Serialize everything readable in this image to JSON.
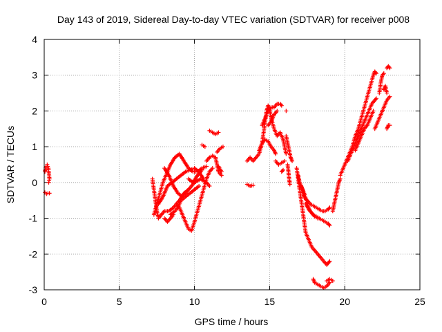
{
  "chart_data": {
    "type": "scatter",
    "title": "Day 143 of 2019, Sidereal Day-to-day VTEC variation (SDTVAR) for receiver p008",
    "xlabel": "GPS time / hours",
    "ylabel": "SDTVAR / TECUs",
    "xlim": [
      0,
      25
    ],
    "ylim": [
      -3,
      4
    ],
    "xticks": [
      0,
      5,
      10,
      15,
      20,
      25
    ],
    "yticks": [
      -3,
      -2,
      -1,
      0,
      1,
      2,
      3,
      4
    ],
    "grid": true,
    "marker": "+",
    "colors": {
      "points": "#ff0000",
      "grid": "#a0a0a0",
      "axes": "#000000"
    },
    "series": [
      {
        "name": "p008",
        "segments": [
          [
            [
              0.05,
              0.3
            ],
            [
              0.12,
              0.45
            ],
            [
              0.2,
              0.5
            ],
            [
              0.28,
              0.4
            ],
            [
              0.35,
              0.1
            ],
            [
              0.3,
              0.0
            ]
          ],
          [
            [
              0.05,
              -0.28
            ],
            [
              0.15,
              -0.32
            ],
            [
              0.25,
              -0.3
            ],
            [
              0.35,
              -0.3
            ]
          ],
          [
            [
              7.2,
              0.1
            ],
            [
              7.3,
              -0.2
            ],
            [
              7.4,
              -0.5
            ],
            [
              7.5,
              -0.8
            ],
            [
              7.6,
              -1.0
            ],
            [
              7.8,
              -0.9
            ],
            [
              8.0,
              -0.8
            ],
            [
              8.3,
              -0.8
            ],
            [
              8.6,
              -0.7
            ],
            [
              9.0,
              -0.5
            ],
            [
              9.3,
              -0.3
            ],
            [
              9.6,
              -0.2
            ]
          ],
          [
            [
              7.3,
              -0.9
            ],
            [
              7.5,
              -0.6
            ],
            [
              7.7,
              -0.3
            ],
            [
              7.9,
              0.0
            ],
            [
              8.1,
              0.2
            ],
            [
              8.4,
              0.5
            ],
            [
              8.7,
              0.7
            ],
            [
              9.0,
              0.8
            ],
            [
              9.3,
              0.6
            ],
            [
              9.6,
              0.4
            ],
            [
              9.9,
              0.3
            ],
            [
              10.2,
              0.3
            ],
            [
              10.5,
              0.4
            ],
            [
              10.8,
              0.45
            ]
          ],
          [
            [
              7.6,
              -0.6
            ],
            [
              7.9,
              -0.4
            ],
            [
              8.2,
              -0.1
            ],
            [
              8.5,
              0.0
            ],
            [
              8.8,
              0.1
            ],
            [
              9.1,
              0.2
            ],
            [
              9.4,
              0.3
            ],
            [
              9.7,
              0.35
            ],
            [
              10.0,
              0.4
            ],
            [
              10.3,
              0.3
            ],
            [
              10.6,
              0.1
            ]
          ],
          [
            [
              8.0,
              0.4
            ],
            [
              8.3,
              0.2
            ],
            [
              8.6,
              -0.1
            ],
            [
              8.9,
              -0.3
            ],
            [
              9.2,
              -0.4
            ],
            [
              9.6,
              -0.2
            ],
            [
              10.0,
              0.0
            ],
            [
              10.4,
              0.1
            ],
            [
              10.8,
              0.0
            ],
            [
              11.0,
              -0.1
            ]
          ],
          [
            [
              8.4,
              -0.9
            ],
            [
              8.7,
              -0.8
            ],
            [
              8.9,
              -0.7
            ],
            [
              9.1,
              -0.5
            ],
            [
              9.4,
              -0.4
            ],
            [
              9.7,
              -0.3
            ],
            [
              10.0,
              -0.2
            ],
            [
              10.3,
              -0.1
            ]
          ],
          [
            [
              8.8,
              -0.6
            ],
            [
              9.0,
              -0.7
            ],
            [
              9.2,
              -0.9
            ],
            [
              9.4,
              -1.1
            ],
            [
              9.6,
              -1.3
            ],
            [
              9.8,
              -1.35
            ],
            [
              10.0,
              -1.1
            ],
            [
              10.2,
              -0.8
            ],
            [
              10.4,
              -0.5
            ],
            [
              10.6,
              -0.2
            ],
            [
              10.8,
              0.1
            ],
            [
              11.0,
              0.3
            ],
            [
              11.2,
              0.4
            ]
          ],
          [
            [
              8.0,
              -1.0
            ],
            [
              8.2,
              -1.1
            ],
            [
              8.4,
              -1.0
            ],
            [
              8.6,
              -0.9
            ]
          ],
          [
            [
              9.6,
              0.1
            ],
            [
              9.9,
              0.0
            ],
            [
              10.2,
              0.2
            ],
            [
              10.5,
              0.35
            ]
          ],
          [
            [
              10.5,
              1.05
            ],
            [
              10.7,
              1.0
            ]
          ],
          [
            [
              10.8,
              0.6
            ],
            [
              11.0,
              0.7
            ],
            [
              11.2,
              0.75
            ],
            [
              11.4,
              0.7
            ],
            [
              11.6,
              0.3
            ],
            [
              11.8,
              0.2
            ]
          ],
          [
            [
              11.0,
              1.45
            ],
            [
              11.2,
              1.4
            ],
            [
              11.4,
              1.35
            ],
            [
              11.6,
              1.4
            ]
          ],
          [
            [
              11.5,
              0.85
            ],
            [
              11.7,
              0.95
            ],
            [
              11.9,
              1.0
            ]
          ],
          [
            [
              11.6,
              0.45
            ],
            [
              11.8,
              0.3
            ]
          ],
          [
            [
              13.5,
              0.6
            ],
            [
              13.7,
              0.7
            ],
            [
              13.9,
              0.6
            ],
            [
              14.1,
              0.7
            ],
            [
              14.3,
              0.8
            ],
            [
              14.5,
              1.1
            ],
            [
              14.6,
              1.4
            ],
            [
              14.7,
              1.7
            ],
            [
              14.8,
              2.0
            ],
            [
              14.9,
              2.15
            ],
            [
              15.0,
              2.05
            ],
            [
              15.1,
              1.8
            ],
            [
              15.3,
              1.5
            ],
            [
              15.5,
              1.3
            ],
            [
              15.7,
              1.4
            ],
            [
              15.9,
              1.2
            ],
            [
              16.0,
              1.0
            ],
            [
              16.1,
              0.8
            ]
          ],
          [
            [
              13.5,
              -0.05
            ],
            [
              13.7,
              -0.1
            ],
            [
              13.9,
              -0.08
            ]
          ],
          [
            [
              14.3,
              0.9
            ],
            [
              14.5,
              1.1
            ],
            [
              14.7,
              1.2
            ],
            [
              14.9,
              1.15
            ],
            [
              15.1,
              1.0
            ],
            [
              15.3,
              0.9
            ],
            [
              15.4,
              0.8
            ]
          ],
          [
            [
              14.5,
              1.6
            ],
            [
              14.7,
              1.8
            ],
            [
              14.9,
              2.0
            ],
            [
              15.1,
              2.1
            ],
            [
              15.3,
              2.1
            ],
            [
              15.5,
              2.2
            ],
            [
              15.7,
              2.2
            ],
            [
              15.8,
              2.15
            ]
          ],
          [
            [
              14.9,
              1.6
            ],
            [
              15.1,
              1.7
            ],
            [
              15.3,
              1.9
            ],
            [
              15.5,
              2.0
            ]
          ],
          [
            [
              15.4,
              0.6
            ],
            [
              15.6,
              0.5
            ],
            [
              15.8,
              0.55
            ],
            [
              16.0,
              0.6
            ]
          ],
          [
            [
              15.8,
              0.3
            ],
            [
              15.9,
              0.35
            ]
          ],
          [
            [
              16.1,
              2.0
            ]
          ],
          [
            [
              16.1,
              1.3
            ],
            [
              16.2,
              1.1
            ],
            [
              16.3,
              0.9
            ],
            [
              16.4,
              0.7
            ],
            [
              16.5,
              0.6
            ]
          ],
          [
            [
              16.2,
              0.5
            ],
            [
              16.25,
              0.3
            ],
            [
              16.3,
              0.1
            ],
            [
              16.35,
              -0.05
            ]
          ],
          [
            [
              16.8,
              0.4
            ],
            [
              16.9,
              0.1
            ],
            [
              17.0,
              -0.2
            ],
            [
              17.1,
              -0.5
            ],
            [
              17.2,
              -0.8
            ],
            [
              17.3,
              -1.1
            ],
            [
              17.4,
              -1.4
            ],
            [
              17.6,
              -1.6
            ],
            [
              17.8,
              -1.8
            ],
            [
              18.0,
              -1.9
            ],
            [
              18.2,
              -2.0
            ],
            [
              18.4,
              -2.1
            ],
            [
              18.6,
              -2.2
            ],
            [
              18.8,
              -2.3
            ],
            [
              18.9,
              -2.25
            ],
            [
              19.0,
              -2.2
            ]
          ],
          [
            [
              16.9,
              0.2
            ],
            [
              17.0,
              0.0
            ],
            [
              17.2,
              -0.2
            ],
            [
              17.3,
              -0.4
            ],
            [
              17.5,
              -0.5
            ],
            [
              17.7,
              -0.6
            ],
            [
              17.9,
              -0.65
            ],
            [
              18.1,
              -0.7
            ],
            [
              18.3,
              -0.75
            ],
            [
              18.5,
              -0.8
            ],
            [
              18.7,
              -0.8
            ],
            [
              18.9,
              -0.75
            ],
            [
              19.0,
              -0.7
            ]
          ],
          [
            [
              17.1,
              -0.1
            ],
            [
              17.3,
              -0.3
            ],
            [
              17.5,
              -0.6
            ],
            [
              17.7,
              -0.8
            ],
            [
              17.9,
              -0.9
            ],
            [
              18.1,
              -0.95
            ],
            [
              18.3,
              -1.0
            ],
            [
              18.5,
              -1.05
            ],
            [
              18.7,
              -1.1
            ],
            [
              18.9,
              -1.15
            ],
            [
              19.0,
              -1.2
            ]
          ],
          [
            [
              17.4,
              -0.6
            ],
            [
              17.6,
              -0.75
            ],
            [
              17.8,
              -0.85
            ],
            [
              18.0,
              -0.95
            ],
            [
              18.2,
              -1.0
            ]
          ],
          [
            [
              17.9,
              -2.7
            ],
            [
              18.0,
              -2.8
            ],
            [
              18.2,
              -2.85
            ],
            [
              18.4,
              -2.9
            ],
            [
              18.6,
              -2.95
            ],
            [
              18.8,
              -2.9
            ],
            [
              19.0,
              -2.8
            ]
          ],
          [
            [
              18.8,
              -2.75
            ],
            [
              19.0,
              -2.7
            ],
            [
              19.2,
              -2.75
            ]
          ],
          [
            [
              19.2,
              -0.8
            ],
            [
              19.3,
              -0.6
            ],
            [
              19.4,
              -0.4
            ],
            [
              19.5,
              -0.2
            ],
            [
              19.6,
              0.0
            ],
            [
              19.7,
              0.1
            ]
          ],
          [
            [
              19.7,
              0.2
            ],
            [
              19.9,
              0.4
            ],
            [
              20.1,
              0.6
            ],
            [
              20.3,
              0.8
            ],
            [
              20.5,
              1.0
            ],
            [
              20.7,
              1.3
            ],
            [
              20.9,
              1.5
            ],
            [
              21.1,
              1.8
            ],
            [
              21.3,
              2.1
            ],
            [
              21.5,
              2.4
            ],
            [
              21.7,
              2.7
            ],
            [
              21.9,
              3.0
            ],
            [
              22.0,
              3.1
            ],
            [
              22.1,
              3.05
            ]
          ],
          [
            [
              20.2,
              0.6
            ],
            [
              20.4,
              0.8
            ],
            [
              20.6,
              1.0
            ],
            [
              20.8,
              1.2
            ],
            [
              21.0,
              1.4
            ],
            [
              21.2,
              1.6
            ],
            [
              21.4,
              1.8
            ],
            [
              21.6,
              2.0
            ],
            [
              21.8,
              2.2
            ],
            [
              22.0,
              2.3
            ],
            [
              22.1,
              2.35
            ]
          ],
          [
            [
              20.7,
              0.9
            ],
            [
              20.9,
              1.1
            ],
            [
              21.1,
              1.3
            ],
            [
              21.3,
              1.5
            ],
            [
              21.5,
              1.6
            ],
            [
              21.7,
              1.8
            ],
            [
              21.9,
              2.0
            ]
          ],
          [
            [
              22.0,
              1.5
            ],
            [
              22.2,
              1.7
            ],
            [
              22.4,
              1.9
            ],
            [
              22.6,
              2.1
            ],
            [
              22.8,
              2.3
            ],
            [
              23.0,
              2.4
            ]
          ],
          [
            [
              22.3,
              2.5
            ],
            [
              22.4,
              2.8
            ],
            [
              22.5,
              3.0
            ],
            [
              22.6,
              3.05
            ]
          ],
          [
            [
              22.6,
              2.6
            ],
            [
              22.7,
              2.7
            ],
            [
              22.8,
              2.5
            ]
          ],
          [
            [
              22.8,
              3.2
            ],
            [
              22.9,
              3.25
            ],
            [
              23.0,
              3.2
            ]
          ],
          [
            [
              22.8,
              1.5
            ],
            [
              22.9,
              1.6
            ],
            [
              23.0,
              1.6
            ]
          ]
        ]
      }
    ]
  }
}
